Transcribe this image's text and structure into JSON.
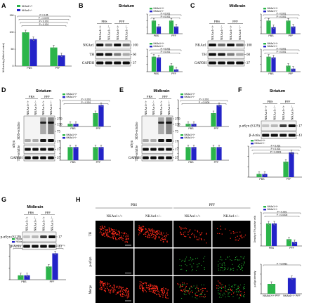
{
  "colors": {
    "wt": "#2bb54a",
    "het": "#2323c8",
    "red": "#ff2a1a",
    "green": "#2bd63a"
  },
  "legend": {
    "wt": "NKAα1+/+",
    "het": "NKAα1+/−"
  },
  "lanes4": [
    "NKAα1+/+",
    "NKAα1+/−",
    "NKAα1+/+",
    "NKAα1+/−"
  ],
  "panels": {
    "A": {
      "letter": "A",
      "ylabel": "NKA activity (%fold of control)"
    },
    "B": {
      "letter": "B",
      "title": "Striatum",
      "groups": [
        "PBS",
        "PFF"
      ],
      "rows": [
        "NKAα1",
        "TH",
        "GAPDH"
      ],
      "mw": [
        "100",
        "60",
        "37"
      ]
    },
    "C": {
      "letter": "C",
      "title": "Midbrain",
      "groups": [
        "PBS",
        "PFF"
      ],
      "rows": [
        "NKAα1",
        "TH",
        "GAPDH"
      ],
      "mw": [
        "100",
        "60",
        "37"
      ]
    },
    "D": {
      "letter": "D",
      "title": "Striatum",
      "groups": [
        "PBS",
        "PFF"
      ],
      "rows": [
        "αSyn",
        "SDS-soluble",
        "TX-soluble",
        "GAPDH"
      ],
      "mw": [
        "250",
        "130",
        "75",
        "17",
        "37"
      ]
    },
    "E": {
      "letter": "E",
      "title": "Midbrain",
      "groups": [
        "PBS",
        "PFF"
      ],
      "rows": [
        "αSyn",
        "SDS-soluble",
        "TX-soluble",
        "GAPDH"
      ],
      "mw": [
        "250",
        "130",
        "75",
        "17",
        "37"
      ]
    },
    "F": {
      "letter": "F",
      "title": "Striatum",
      "groups": [
        "PBS",
        "PFF"
      ],
      "rows": [
        "p-αSyn (S129)",
        "β-Actin"
      ],
      "mw": [
        "17",
        "43"
      ]
    },
    "G": {
      "letter": "G",
      "title": "Midbrain",
      "groups": [
        "PBS",
        "PFF"
      ],
      "rows": [
        "p-αSyn (S129)",
        "β-Actin"
      ],
      "mw": [
        "17",
        "43"
      ]
    },
    "H": {
      "letter": "H",
      "groups": [
        "PBS",
        "PFF"
      ],
      "rows": [
        "TH",
        "p-αSyn",
        "Merge"
      ],
      "cols": [
        "NKAα1+/+",
        "NKAα1+/−",
        "NKAα1+/+",
        "NKAα1+/−"
      ]
    }
  },
  "chart_data": [
    {
      "id": "A",
      "type": "bar",
      "categories": [
        "PBS",
        "PFF"
      ],
      "series": [
        {
          "name": "NKAα1+/+",
          "values": [
            100,
            55
          ]
        },
        {
          "name": "NKAα1+/−",
          "values": [
            80,
            32
          ]
        }
      ],
      "ylabel": "NKA activity (%fold of control)",
      "ylim": [
        0,
        150
      ],
      "yticks": [
        "0",
        "50",
        "100",
        "150"
      ],
      "pvalues": [
        "P < 0.05",
        "P = 0.0072",
        "P < 0.001",
        "P < 0.001"
      ]
    },
    {
      "id": "B-top",
      "type": "bar",
      "categories": [
        "PBS",
        "PFF"
      ],
      "series": [
        {
          "name": "NKAα1+/+",
          "values": [
            1.0,
            1.0
          ]
        },
        {
          "name": "NKAα1+/−",
          "values": [
            0.55,
            0.55
          ]
        }
      ],
      "ylim": [
        0,
        1.5
      ],
      "pvalues": [
        "P < 0.001",
        "P < 0.001"
      ]
    },
    {
      "id": "B-bottom",
      "type": "bar",
      "categories": [
        "PBS",
        "PFF"
      ],
      "series": [
        {
          "name": "NKAα1+/+",
          "values": [
            1.0,
            0.4
          ]
        },
        {
          "name": "NKAα1+/−",
          "values": [
            0.95,
            0.15
          ]
        }
      ],
      "ylim": [
        0,
        1.5
      ],
      "pvalues": [
        "P < 0.001",
        "P < 0.001"
      ]
    },
    {
      "id": "C-top",
      "type": "bar",
      "categories": [
        "PBS",
        "PFF"
      ],
      "series": [
        {
          "name": "NKAα1+/+",
          "values": [
            1.0,
            1.0
          ]
        },
        {
          "name": "NKAα1+/−",
          "values": [
            0.5,
            0.55
          ]
        }
      ],
      "ylim": [
        0,
        1.5
      ],
      "pvalues": [
        "P < 0.001",
        "P < 0.001"
      ]
    },
    {
      "id": "C-bottom",
      "type": "bar",
      "categories": [
        "PBS",
        "PFF"
      ],
      "series": [
        {
          "name": "NKAα1+/+",
          "values": [
            1.0,
            0.4
          ]
        },
        {
          "name": "NKAα1+/−",
          "values": [
            0.95,
            0.2
          ]
        }
      ],
      "ylim": [
        0,
        1.5
      ],
      "pvalues": [
        "P < 0.001",
        "P < 0.001"
      ]
    },
    {
      "id": "D-top",
      "type": "bar",
      "categories": [
        "PBS",
        "PFF"
      ],
      "series": [
        {
          "name": "NKAα1+/+",
          "values": [
            1,
            5
          ]
        },
        {
          "name": "NKAα1+/−",
          "values": [
            1,
            8
          ]
        }
      ],
      "ylim": [
        0,
        10
      ],
      "pvalues": [
        "P < 0.001",
        "P < 0.001"
      ]
    },
    {
      "id": "D-bottom",
      "type": "bar",
      "categories": [
        "PBS",
        "PFF"
      ],
      "series": [
        {
          "name": "NKAα1+/+",
          "values": [
            1.0,
            1.0
          ]
        },
        {
          "name": "NKAα1+/−",
          "values": [
            1.0,
            1.0
          ]
        }
      ],
      "ylim": [
        0,
        1.5
      ],
      "pvalues": []
    },
    {
      "id": "E-top",
      "type": "bar",
      "categories": [
        "PBS",
        "PFF"
      ],
      "series": [
        {
          "name": "NKAα1+/+",
          "values": [
            1,
            5
          ]
        },
        {
          "name": "NKAα1+/−",
          "values": [
            1,
            8
          ]
        }
      ],
      "ylim": [
        0,
        10
      ],
      "pvalues": [
        "P < 0.001",
        "P = 0.0008"
      ]
    },
    {
      "id": "E-bottom",
      "type": "bar",
      "categories": [
        "PBS",
        "PFF"
      ],
      "series": [
        {
          "name": "NKAα1+/+",
          "values": [
            1.0,
            1.0
          ]
        },
        {
          "name": "NKAα1+/−",
          "values": [
            1.0,
            1.0
          ]
        }
      ],
      "ylim": [
        0,
        1.5
      ],
      "pvalues": []
    },
    {
      "id": "F",
      "type": "bar",
      "categories": [
        "PBS",
        "PFF"
      ],
      "series": [
        {
          "name": "NKAα1+/+",
          "values": [
            1,
            5
          ]
        },
        {
          "name": "NKAα1+/−",
          "values": [
            1,
            8
          ]
        }
      ],
      "ylim": [
        0,
        10
      ],
      "pvalues": [
        "P < 0.001",
        "P < 0.001",
        "P = 0.0003"
      ]
    },
    {
      "id": "G",
      "type": "bar",
      "categories": [
        "PBS",
        "PFF"
      ],
      "series": [
        {
          "name": "NKAα1+/+",
          "values": [
            1,
            3
          ]
        },
        {
          "name": "NKAα1+/−",
          "values": [
            1,
            6
          ]
        }
      ],
      "ylim": [
        0,
        8
      ],
      "pvalues": [
        "P = 0.0059",
        "P = 0.0019"
      ]
    },
    {
      "id": "H-top",
      "type": "bar",
      "categories": [
        "PBS",
        "PFF"
      ],
      "series": [
        {
          "name": "NKAα1+/+",
          "values": [
            100,
            30
          ]
        },
        {
          "name": "NKAα1+/−",
          "values": [
            100,
            18
          ]
        }
      ],
      "ylabel": "Density of TH-positive cells",
      "ylim": [
        0,
        150
      ],
      "pvalues": [
        "P < 0.001",
        "P = 0.0205"
      ]
    },
    {
      "id": "H-bottom",
      "type": "bar",
      "categories": [
        "NKAα1+/+ PFF",
        "NKAα1+/− PFF"
      ],
      "series": [
        {
          "name": "PFF",
          "values": [
            100,
            160
          ]
        }
      ],
      "ylabel": "p-αSyn intensity",
      "ylim": [
        0,
        300
      ],
      "pvalues": [
        "P = 0.0051"
      ]
    }
  ]
}
